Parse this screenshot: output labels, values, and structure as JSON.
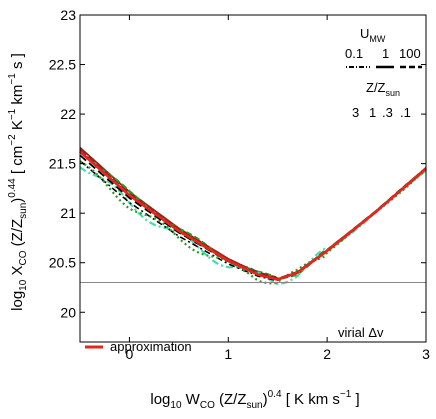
{
  "chart_data": {
    "type": "line",
    "title": "",
    "x_axis": {
      "range": [
        -0.5,
        3
      ],
      "ticks": [
        0,
        1,
        2,
        3
      ],
      "tick_labels": [
        "0",
        "1",
        "2",
        "3"
      ],
      "label_main": "log",
      "label_sub": "10",
      "label_mid": " W",
      "label_mid_sub": "CO",
      "label_rest": " (Z/Z",
      "label_rest_sub": "sun",
      "label_close": ")",
      "label_sup": "0.4",
      "label_units": " [ K km s",
      "label_units_sup": "−1",
      "label_end": " ]"
    },
    "y_axis": {
      "range": [
        19.7,
        23
      ],
      "ticks": [
        20,
        20.5,
        21,
        21.5,
        22,
        22.5,
        23
      ],
      "tick_labels": [
        "20",
        "20.5",
        "21",
        "21.5",
        "22",
        "22.5",
        "23"
      ],
      "label_main": "log",
      "label_sub": "10",
      "label_mid": " X",
      "label_mid_sub": "CO",
      "label_rest": " (Z/Z",
      "label_rest_sub": "sun",
      "label_close": ")",
      "label_sup": "0.44",
      "label_units": " [ cm",
      "label_units_sup1": "−2",
      "label_units2": " K",
      "label_units_sup2": "−1",
      "label_units3": " km",
      "label_units_sup3": "−1",
      "label_end": " s ]"
    },
    "reference_line": {
      "y": 20.3,
      "color": "#888888"
    },
    "annotation": "virial Δv",
    "legend_umw": {
      "title": "U",
      "title_sub": "MW",
      "values": [
        "0.1",
        "1",
        "100"
      ]
    },
    "legend_z": {
      "title": "Z/Z",
      "title_sub": "sun",
      "values": [
        {
          "text": "3",
          "color": "#8b2a1a"
        },
        {
          "text": "1",
          "color": "#000000"
        },
        {
          "text": ".3",
          "color": "#2a9a2a"
        },
        {
          "text": ".1",
          "color": "#44ddaa"
        }
      ]
    },
    "legend_approx": {
      "label": "approximation",
      "color": "#e8241e"
    },
    "series": [
      {
        "color": "#000000",
        "dash": "solid",
        "width": 2.2,
        "offset": 0.0,
        "wiggle": 0.0
      },
      {
        "color": "#8b2a1a",
        "dash": "solid",
        "width": 1.8,
        "offset": 0.03,
        "wiggle": 0.0
      },
      {
        "color": "#2a9a2a",
        "dash": "6,3",
        "width": 2.4,
        "offset": 0.02,
        "wiggle": 0.02
      },
      {
        "color": "#44ddaa",
        "dash": "7,3,2,3",
        "width": 2.2,
        "offset": -0.04,
        "wiggle": 0.05
      },
      {
        "color": "#000000",
        "dash": "6,3,2,3",
        "width": 1.6,
        "offset": -0.03,
        "wiggle": 0.0
      },
      {
        "color": "#2a9a2a",
        "dash": "2,3",
        "width": 2.2,
        "offset": -0.05,
        "wiggle": 0.04
      },
      {
        "color": "#8b2a1a",
        "dash": "8,3",
        "width": 1.6,
        "offset": 0.05,
        "wiggle": 0.0
      },
      {
        "color": "#000000",
        "dash": "8,4",
        "width": 1.8,
        "offset": 0.01,
        "wiggle": 0.0
      }
    ],
    "approximation_curve": {
      "x": [
        -0.5,
        0,
        0.5,
        1.0,
        1.3,
        1.5,
        1.7,
        2.0,
        2.5,
        3.0
      ],
      "y": [
        21.62,
        21.18,
        20.82,
        20.52,
        20.38,
        20.33,
        20.4,
        20.62,
        21.02,
        21.45
      ]
    }
  }
}
